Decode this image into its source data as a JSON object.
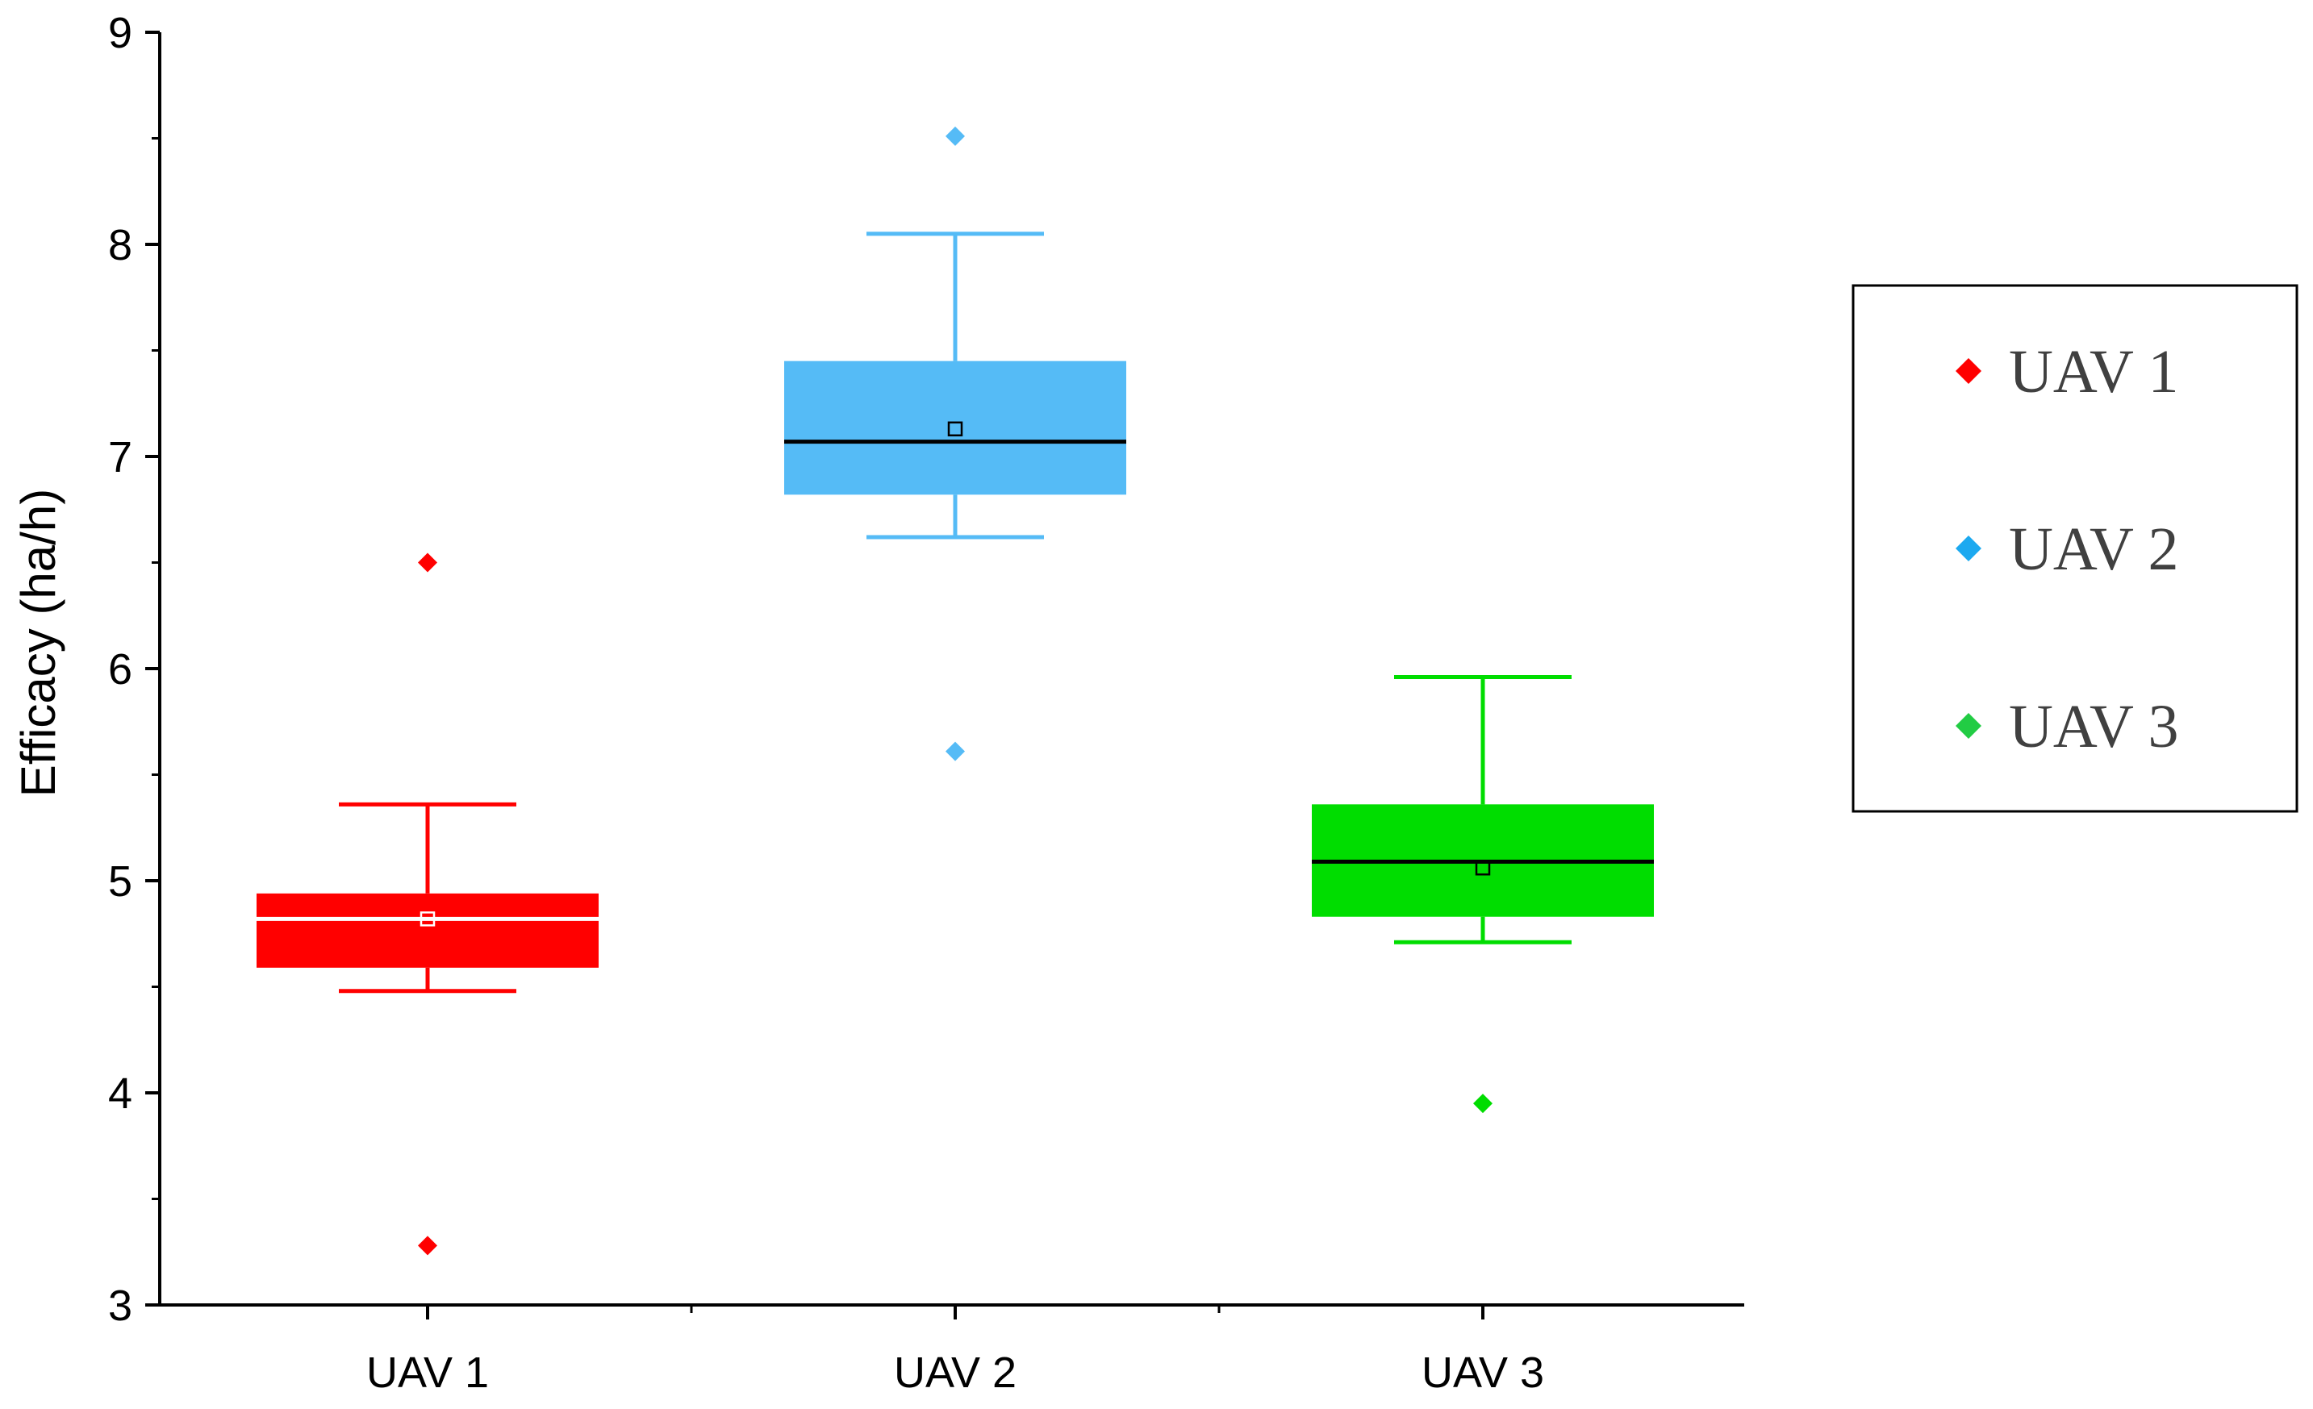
{
  "chart_data": {
    "type": "box",
    "title": "",
    "xlabel": "",
    "ylabel": "Efficacy (ha/h)",
    "ylim": [
      3,
      9
    ],
    "yticks": [
      "3",
      "4",
      "5",
      "6",
      "7",
      "8",
      "9"
    ],
    "categories": [
      "UAV 1",
      "UAV 2",
      "UAV 3"
    ],
    "series": [
      {
        "name": "UAV 1",
        "color": "#ff0000",
        "whisker_low": 4.48,
        "q1": 4.59,
        "median": 4.82,
        "q3": 4.94,
        "whisker_high": 5.36,
        "mean": 4.82,
        "outliers": [
          6.5,
          3.28
        ],
        "median_line_color": "#ffffff",
        "mean_marker_color": "#ffffff"
      },
      {
        "name": "UAV 2",
        "color": "#55bbf6",
        "whisker_low": 6.62,
        "q1": 6.82,
        "median": 7.07,
        "q3": 7.45,
        "whisker_high": 8.05,
        "mean": 7.13,
        "outliers": [
          8.51,
          5.61
        ],
        "median_line_color": "#000000",
        "mean_marker_color": "#000000"
      },
      {
        "name": "UAV 3",
        "color": "#00dd00",
        "whisker_low": 4.71,
        "q1": 4.83,
        "median": 5.09,
        "q3": 5.36,
        "whisker_high": 5.96,
        "mean": 5.06,
        "outliers": [
          3.95
        ],
        "median_line_color": "#000000",
        "mean_marker_color": "#000000"
      }
    ],
    "legend": {
      "position": "right",
      "items": [
        {
          "label": "UAV 1",
          "color": "#ff0000"
        },
        {
          "label": "UAV 2",
          "color": "#1ca9f0"
        },
        {
          "label": "UAV 3",
          "color": "#22cc44"
        }
      ]
    },
    "grid": false
  }
}
